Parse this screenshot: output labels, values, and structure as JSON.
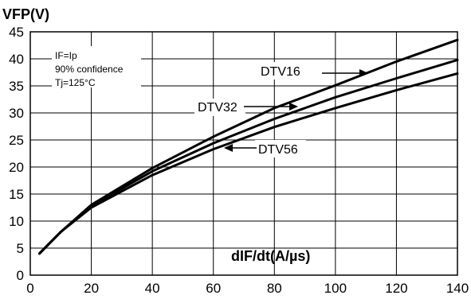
{
  "chart_data": {
    "type": "line",
    "ylabel": "VFP(V)",
    "xlabel": "dIF/dt(A/µs)",
    "xlim": [
      0,
      140
    ],
    "ylim": [
      0,
      45
    ],
    "x_ticks": [
      "0",
      "20",
      "40",
      "60",
      "80",
      "100",
      "120",
      "140"
    ],
    "y_ticks": [
      "0",
      "5",
      "10",
      "15",
      "20",
      "25",
      "30",
      "35",
      "40",
      "45"
    ],
    "grid": true,
    "annotations": [
      "IF=Ip",
      "90% confidence",
      "Tj=125°C"
    ],
    "series": [
      {
        "name": "DTV16",
        "x": [
          3,
          10,
          20,
          40,
          60,
          80,
          100,
          120,
          140
        ],
        "y": [
          4,
          8,
          13,
          19.8,
          25.6,
          30.9,
          35.1,
          39.5,
          43.5
        ]
      },
      {
        "name": "DTV32",
        "x": [
          3,
          10,
          20,
          40,
          60,
          80,
          100,
          120,
          140
        ],
        "y": [
          4,
          8,
          12.8,
          19.2,
          24.4,
          28.9,
          32.9,
          36.4,
          39.8
        ]
      },
      {
        "name": "DTV56",
        "x": [
          3,
          10,
          20,
          40,
          60,
          80,
          100,
          120,
          140
        ],
        "y": [
          4,
          8,
          12.5,
          18.5,
          23.3,
          27.4,
          30.9,
          34.2,
          37.3
        ]
      }
    ]
  }
}
